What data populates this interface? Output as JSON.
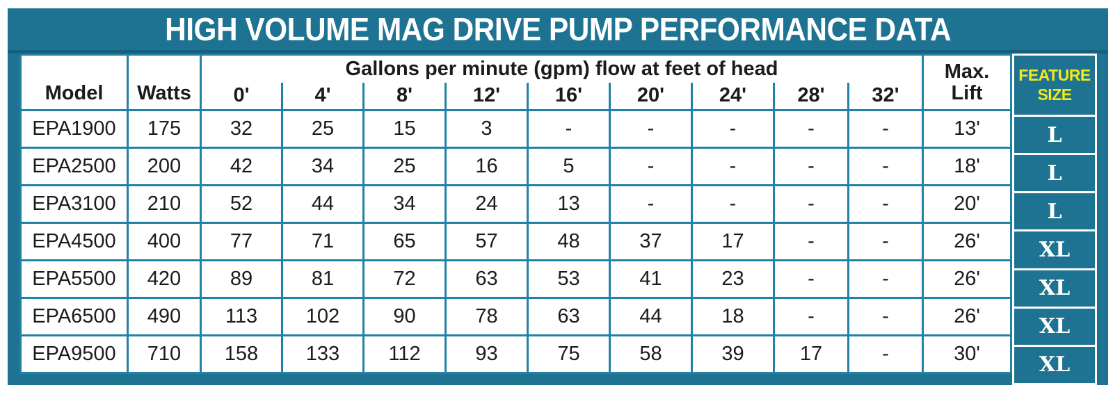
{
  "title": "HIGH VOLUME MAG DRIVE PUMP PERFORMANCE DATA",
  "colors": {
    "panel_teal": "#1e7392",
    "grid_teal": "#2182a5",
    "title_shadow_teal": "#15607d",
    "feature_yellow": "#f7e817",
    "cell_white": "#ffffff",
    "text_black": "#1b1b1b"
  },
  "chart_data": {
    "type": "table",
    "title": "HIGH VOLUME MAG DRIVE PUMP PERFORMANCE DATA",
    "group_header": "Gallons per minute (gpm) flow at feet of head",
    "header": {
      "model": "Model",
      "watts": "Watts",
      "flow_heads": [
        "0'",
        "4'",
        "8'",
        "12'",
        "16'",
        "20'",
        "24'",
        "28'",
        "32'"
      ],
      "max_lift_line1": "Max.",
      "max_lift_line2": "Lift",
      "feature_line1": "FEATURE",
      "feature_line2": "SIZE"
    },
    "rows": [
      {
        "model": "EPA1900",
        "watts": "175",
        "flows": [
          "32",
          "25",
          "15",
          "3",
          "-",
          "-",
          "-",
          "-",
          "-"
        ],
        "max_lift": "13'",
        "feature_size": "L"
      },
      {
        "model": "EPA2500",
        "watts": "200",
        "flows": [
          "42",
          "34",
          "25",
          "16",
          "5",
          "-",
          "-",
          "-",
          "-"
        ],
        "max_lift": "18'",
        "feature_size": "L"
      },
      {
        "model": "EPA3100",
        "watts": "210",
        "flows": [
          "52",
          "44",
          "34",
          "24",
          "13",
          "-",
          "-",
          "-",
          "-"
        ],
        "max_lift": "20'",
        "feature_size": "L"
      },
      {
        "model": "EPA4500",
        "watts": "400",
        "flows": [
          "77",
          "71",
          "65",
          "57",
          "48",
          "37",
          "17",
          "-",
          "-"
        ],
        "max_lift": "26'",
        "feature_size": "XL"
      },
      {
        "model": "EPA5500",
        "watts": "420",
        "flows": [
          "89",
          "81",
          "72",
          "63",
          "53",
          "41",
          "23",
          "-",
          "-"
        ],
        "max_lift": "26'",
        "feature_size": "XL"
      },
      {
        "model": "EPA6500",
        "watts": "490",
        "flows": [
          "113",
          "102",
          "90",
          "78",
          "63",
          "44",
          "18",
          "-",
          "-"
        ],
        "max_lift": "26'",
        "feature_size": "XL"
      },
      {
        "model": "EPA9500",
        "watts": "710",
        "flows": [
          "158",
          "133",
          "112",
          "93",
          "75",
          "58",
          "39",
          "17",
          "-"
        ],
        "max_lift": "30'",
        "feature_size": "XL"
      }
    ]
  }
}
